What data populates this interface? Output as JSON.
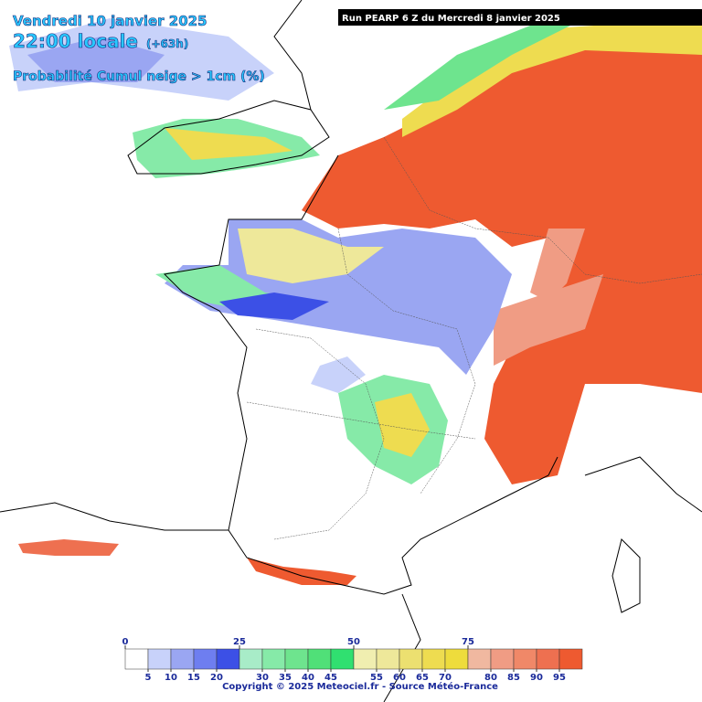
{
  "header": {
    "date": "Vendredi 10 janvier 2025",
    "time": "22:00 locale",
    "lead": "(+63h)",
    "product": "Probabilité Cumul neige > 1cm (%)",
    "run": "Run PEARP 6 Z du Mercredi 8 janvier 2025"
  },
  "legend": {
    "colors": [
      "#ffffff",
      "#c8d2fa",
      "#9aa6f2",
      "#6e7ef0",
      "#3c50e6",
      "#a8ecc8",
      "#86eaa8",
      "#6ee48e",
      "#50e078",
      "#30e070",
      "#f0eeb0",
      "#eee89a",
      "#ece070",
      "#eedc50",
      "#eedc3c",
      "#f0b8a0",
      "#f09c84",
      "#f08868",
      "#ee7050",
      "#ee5a30"
    ],
    "major_ticks": [
      0,
      25,
      50,
      75
    ],
    "minor_ticks": [
      5,
      10,
      15,
      20,
      30,
      35,
      40,
      45,
      55,
      60,
      65,
      70,
      80,
      85,
      90,
      95
    ]
  },
  "footer": "Copyright © 2025 Meteociel.fr - Source Météo-France"
}
